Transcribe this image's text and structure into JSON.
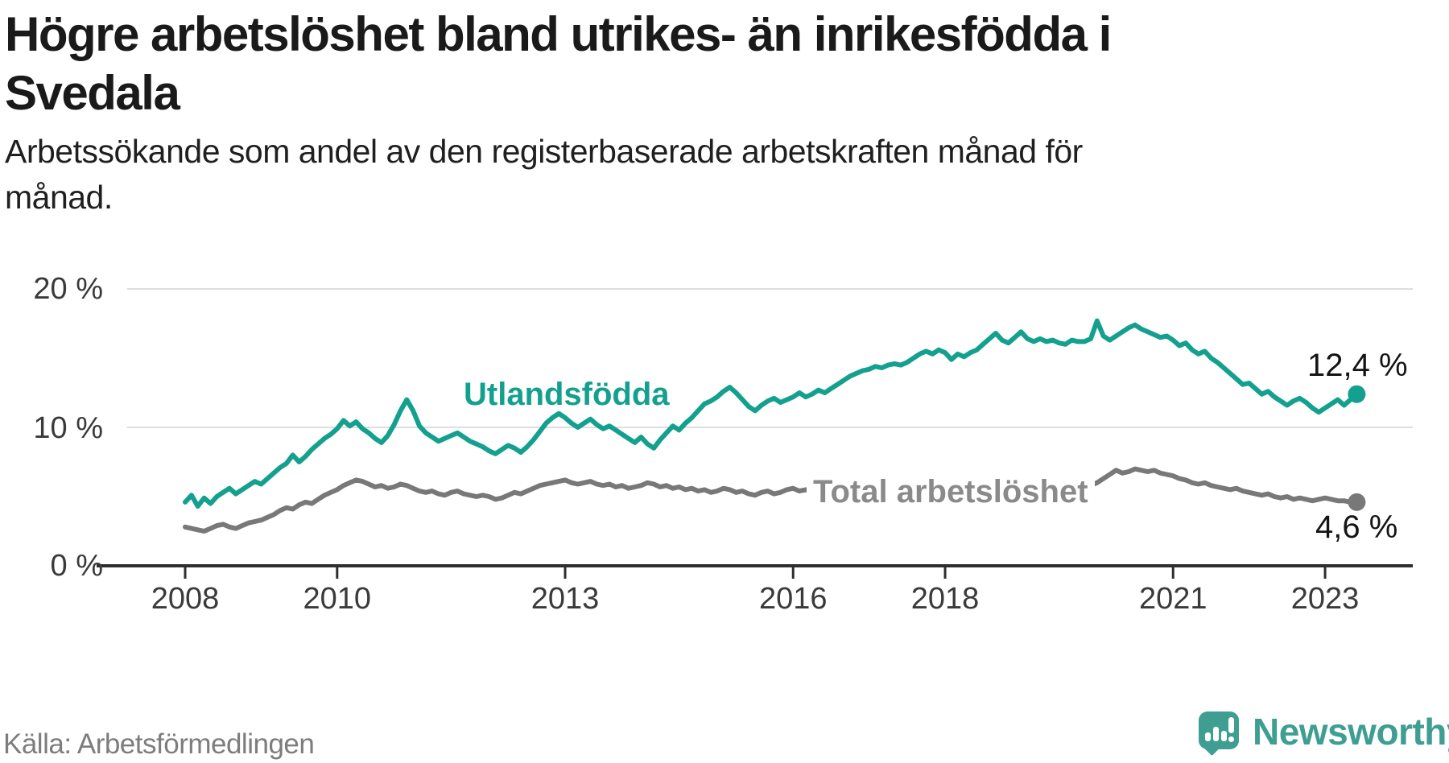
{
  "title": {
    "line1": "Högre arbetslöshet bland utrikes- än inrikesfödda i",
    "line2": "Svedala"
  },
  "subtitle": "Arbetssökande som andel av den registerbaserade arbetskraften månad för månad.",
  "source": "Källa: Arbetsförmedlingen",
  "brand": {
    "name": "Newsworthy",
    "color": "#3f9e92",
    "icon": "newsworthy-speech-bubble-bar-chart-icon"
  },
  "colors": {
    "accent_teal": "#14a08e",
    "line_gray": "#787878",
    "gridline": "#dedede",
    "axis": "#2e2e2e",
    "tick_text": "#3a3a3a",
    "value_text": "#141414"
  },
  "axis": {
    "y_labels": [
      "20 %",
      "10 %",
      "0 %"
    ],
    "x_tick_years": [
      2008,
      2010,
      2013,
      2016,
      2018,
      2021,
      2023
    ]
  },
  "chart_data": {
    "type": "line",
    "title": "Högre arbetslöshet bland utrikes- än inrikesfödda i Svedala",
    "subtitle": "Arbetssökande som andel av den registerbaserade arbetskraften månad för månad.",
    "unit": "%",
    "frequency": "monthly",
    "x_start": "2008-01",
    "x_end": "2023-06",
    "ylim": [
      0,
      20
    ],
    "grid_percents": [
      10,
      20
    ],
    "legend_position": "inline-labels",
    "series": [
      {
        "name": "Utlandsfödda",
        "color": "#14a08e",
        "end_label": "12,4 %",
        "end_value": 12.4,
        "values": [
          4.6,
          5.1,
          4.3,
          4.9,
          4.5,
          5.0,
          5.3,
          5.6,
          5.2,
          5.5,
          5.8,
          6.1,
          5.9,
          6.3,
          6.7,
          7.1,
          7.4,
          8.0,
          7.5,
          7.9,
          8.4,
          8.8,
          9.2,
          9.5,
          9.9,
          10.5,
          10.1,
          10.4,
          9.9,
          9.6,
          9.2,
          8.9,
          9.4,
          10.2,
          11.2,
          12.0,
          11.2,
          10.1,
          9.6,
          9.3,
          9.0,
          9.2,
          9.4,
          9.6,
          9.3,
          9.0,
          8.8,
          8.6,
          8.3,
          8.1,
          8.4,
          8.7,
          8.5,
          8.2,
          8.6,
          9.1,
          9.7,
          10.3,
          10.7,
          11.0,
          10.7,
          10.3,
          10.0,
          10.3,
          10.6,
          10.2,
          9.9,
          10.1,
          9.8,
          9.5,
          9.2,
          8.9,
          9.3,
          8.8,
          8.5,
          9.1,
          9.6,
          10.1,
          9.8,
          10.3,
          10.7,
          11.2,
          11.7,
          11.9,
          12.2,
          12.6,
          12.9,
          12.5,
          12.0,
          11.5,
          11.2,
          11.6,
          11.9,
          12.1,
          11.8,
          12.0,
          12.2,
          12.5,
          12.2,
          12.4,
          12.7,
          12.5,
          12.8,
          13.1,
          13.4,
          13.7,
          13.9,
          14.1,
          14.2,
          14.4,
          14.3,
          14.5,
          14.6,
          14.5,
          14.7,
          15.0,
          15.3,
          15.5,
          15.3,
          15.6,
          15.4,
          14.9,
          15.3,
          15.1,
          15.4,
          15.6,
          16.0,
          16.4,
          16.8,
          16.3,
          16.1,
          16.5,
          16.9,
          16.4,
          16.2,
          16.4,
          16.2,
          16.3,
          16.1,
          16.0,
          16.3,
          16.2,
          16.2,
          16.4,
          17.7,
          16.6,
          16.3,
          16.6,
          16.9,
          17.2,
          17.4,
          17.1,
          16.9,
          16.7,
          16.5,
          16.6,
          16.3,
          15.9,
          16.1,
          15.6,
          15.3,
          15.5,
          15.0,
          14.7,
          14.3,
          13.9,
          13.5,
          13.1,
          13.2,
          12.8,
          12.4,
          12.6,
          12.2,
          11.9,
          11.6,
          11.9,
          12.1,
          11.8,
          11.4,
          11.1,
          11.4,
          11.7,
          12.0,
          11.6,
          12.0,
          12.4
        ]
      },
      {
        "name": "Total arbetslöshet",
        "color": "#787878",
        "end_label": "4,6 %",
        "end_value": 4.6,
        "values": [
          2.8,
          2.7,
          2.6,
          2.5,
          2.7,
          2.9,
          3.0,
          2.8,
          2.7,
          2.9,
          3.1,
          3.2,
          3.3,
          3.5,
          3.7,
          4.0,
          4.2,
          4.1,
          4.4,
          4.6,
          4.5,
          4.8,
          5.1,
          5.3,
          5.5,
          5.8,
          6.0,
          6.2,
          6.1,
          5.9,
          5.7,
          5.8,
          5.6,
          5.7,
          5.9,
          5.8,
          5.6,
          5.4,
          5.3,
          5.4,
          5.2,
          5.1,
          5.3,
          5.4,
          5.2,
          5.1,
          5.0,
          5.1,
          5.0,
          4.8,
          4.9,
          5.1,
          5.3,
          5.2,
          5.4,
          5.6,
          5.8,
          5.9,
          6.0,
          6.1,
          6.2,
          6.0,
          5.9,
          6.0,
          6.1,
          5.9,
          5.8,
          5.9,
          5.7,
          5.8,
          5.6,
          5.7,
          5.8,
          6.0,
          5.9,
          5.7,
          5.8,
          5.6,
          5.7,
          5.5,
          5.6,
          5.4,
          5.5,
          5.3,
          5.4,
          5.6,
          5.5,
          5.3,
          5.4,
          5.2,
          5.1,
          5.3,
          5.4,
          5.2,
          5.3,
          5.5,
          5.6,
          5.4,
          5.5,
          5.3,
          5.2,
          5.4,
          5.3,
          5.1,
          5.2,
          5.4,
          5.3,
          5.5,
          5.4,
          5.6,
          5.5,
          5.7,
          5.6,
          5.4,
          5.5,
          5.3,
          5.4,
          5.6,
          5.5,
          5.7,
          5.8,
          5.6,
          5.7,
          5.5,
          5.4,
          5.6,
          5.5,
          5.3,
          5.4,
          5.5,
          5.3,
          5.4,
          5.5,
          5.3,
          5.4,
          5.2,
          5.3,
          5.5,
          5.4,
          5.6,
          5.5,
          5.7,
          5.6,
          5.8,
          6.0,
          6.3,
          6.6,
          6.9,
          6.7,
          6.8,
          7.0,
          6.9,
          6.8,
          6.9,
          6.7,
          6.6,
          6.5,
          6.3,
          6.2,
          6.0,
          5.9,
          6.0,
          5.8,
          5.7,
          5.6,
          5.5,
          5.6,
          5.4,
          5.3,
          5.2,
          5.1,
          5.2,
          5.0,
          4.9,
          5.0,
          4.8,
          4.9,
          4.8,
          4.7,
          4.8,
          4.9,
          4.8,
          4.7,
          4.7,
          4.6,
          4.6
        ]
      }
    ]
  }
}
